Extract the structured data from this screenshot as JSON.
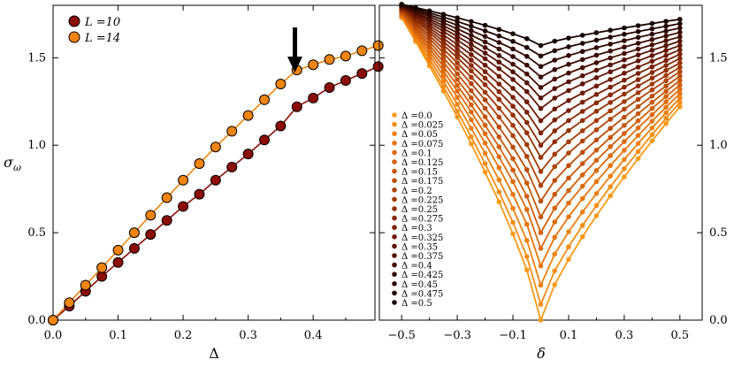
{
  "chart_data": [
    {
      "type": "line",
      "panel": "left",
      "xlabel": "Δ",
      "ylabel": "σ_ω",
      "xlim": [
        0,
        0.495
      ],
      "ylim": [
        0,
        1.8
      ],
      "xticks": [
        "0.0",
        "0.1",
        "0.2",
        "0.3",
        "0.4"
      ],
      "yticks": [
        "0.0",
        "0.5",
        "1.0",
        "1.5"
      ],
      "legend": [
        "L =10",
        "L =14"
      ],
      "legend_position": "top-left",
      "annotation": "arrow pointing down at Δ≈0.375 on L=14 curve",
      "x": [
        0.0,
        0.025,
        0.05,
        0.075,
        0.1,
        0.125,
        0.15,
        0.175,
        0.2,
        0.225,
        0.25,
        0.275,
        0.3,
        0.325,
        0.35,
        0.375,
        0.4,
        0.425,
        0.45,
        0.475,
        0.5
      ],
      "series": [
        {
          "name": "L =10",
          "color": "#8b0d06",
          "values": [
            0.0,
            0.08,
            0.165,
            0.25,
            0.33,
            0.41,
            0.49,
            0.57,
            0.65,
            0.72,
            0.8,
            0.875,
            0.95,
            1.03,
            1.11,
            1.22,
            1.27,
            1.33,
            1.37,
            1.41,
            1.45
          ]
        },
        {
          "name": "L =14",
          "color": "#f0840f",
          "values": [
            0.0,
            0.1,
            0.2,
            0.3,
            0.4,
            0.5,
            0.6,
            0.7,
            0.8,
            0.895,
            0.99,
            1.08,
            1.17,
            1.26,
            1.35,
            1.43,
            1.46,
            1.49,
            1.51,
            1.54,
            1.57
          ]
        }
      ]
    },
    {
      "type": "line",
      "panel": "right",
      "xlabel": "δ",
      "xlim": [
        -0.58,
        0.58
      ],
      "ylim": [
        0,
        1.8
      ],
      "xticks": [
        "−0.5",
        "−0.3",
        "−0.1",
        "0.1",
        "0.3",
        "0.5"
      ],
      "yticks": [
        "0.0",
        "0.5",
        "1.0",
        "1.5"
      ],
      "legend_position": "lower-left",
      "x": [
        -0.5,
        -0.45,
        -0.4,
        -0.35,
        -0.3,
        -0.25,
        -0.2,
        -0.15,
        -0.1,
        -0.05,
        0.0,
        0.05,
        0.1,
        0.15,
        0.2,
        0.25,
        0.3,
        0.35,
        0.4,
        0.45,
        0.5
      ],
      "series_labels": [
        "Δ =0.0",
        "Δ =0.025",
        "Δ =0.05",
        "Δ =0.075",
        "Δ =0.1",
        "Δ =0.125",
        "Δ =0.15",
        "Δ =0.175",
        "Δ =0.2",
        "Δ =0.225",
        "Δ =0.25",
        "Δ =0.275",
        "Δ =0.3",
        "Δ =0.325",
        "Δ =0.35",
        "Δ =0.375",
        "Δ =0.4",
        "Δ =0.425",
        "Δ =0.45",
        "Δ =0.475",
        "Δ =0.5"
      ],
      "series_colors": [
        "#fb9a18",
        "#f58d14",
        "#ee8111",
        "#e6760e",
        "#dd6b0c",
        "#d3610a",
        "#c85708",
        "#bc4d07",
        "#af4306",
        "#a23a05",
        "#953105",
        "#882905",
        "#7b2104",
        "#6e1b04",
        "#611603",
        "#541203",
        "#470e02",
        "#3a0b02",
        "#2e0801",
        "#220501",
        "#160300"
      ],
      "series_params": {
        "left_edge": [
          1.73,
          1.735,
          1.74,
          1.745,
          1.75,
          1.755,
          1.76,
          1.765,
          1.77,
          1.775,
          1.78,
          1.783,
          1.786,
          1.789,
          1.792,
          1.795,
          1.797,
          1.8,
          1.802,
          1.804,
          1.806
        ],
        "right_edge": [
          1.22,
          1.245,
          1.27,
          1.295,
          1.32,
          1.345,
          1.37,
          1.395,
          1.42,
          1.445,
          1.47,
          1.495,
          1.52,
          1.545,
          1.57,
          1.595,
          1.62,
          1.645,
          1.67,
          1.695,
          1.72
        ],
        "minimum": [
          0.0,
          0.09,
          0.2,
          0.31,
          0.41,
          0.5,
          0.59,
          0.68,
          0.77,
          0.85,
          0.93,
          1.0,
          1.07,
          1.14,
          1.21,
          1.27,
          1.33,
          1.39,
          1.45,
          1.51,
          1.57
        ]
      }
    }
  ]
}
